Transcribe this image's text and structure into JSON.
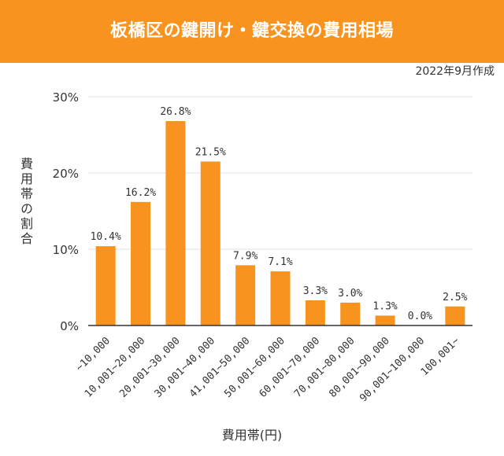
{
  "header": {
    "title": "板橋区の鍵開け・鍵交換の費用相場"
  },
  "note": "2022年9月作成",
  "colors": {
    "accent": "#f7931e",
    "bar": "#f7931e",
    "grid": "#e0e0e0",
    "axis": "#333333"
  },
  "chart_data": {
    "type": "bar",
    "title": "板橋区の鍵開け・鍵交換の費用相場",
    "xlabel": "費用帯(円)",
    "ylabel": "費用帯の割合",
    "ylim": [
      0,
      30
    ],
    "yticks": [
      "0%",
      "10%",
      "20%",
      "30%"
    ],
    "ytick_values": [
      0,
      10,
      20,
      30
    ],
    "categories": [
      "~10,000",
      "10,001~20,000",
      "20,001~30,000",
      "30,001~40,000",
      "41,001~50,000",
      "50,001~60,000",
      "60,001~70,000",
      "70,001~80,000",
      "80,001~90,000",
      "90,001~100,000",
      "100,001~"
    ],
    "values": [
      10.4,
      16.2,
      26.8,
      21.5,
      7.9,
      7.1,
      3.3,
      3.0,
      1.3,
      0.0,
      2.5
    ],
    "value_labels": [
      "10.4%",
      "16.2%",
      "26.8%",
      "21.5%",
      "7.9%",
      "7.1%",
      "3.3%",
      "3.0%",
      "1.3%",
      "0.0%",
      "2.5%"
    ],
    "grid": true
  }
}
